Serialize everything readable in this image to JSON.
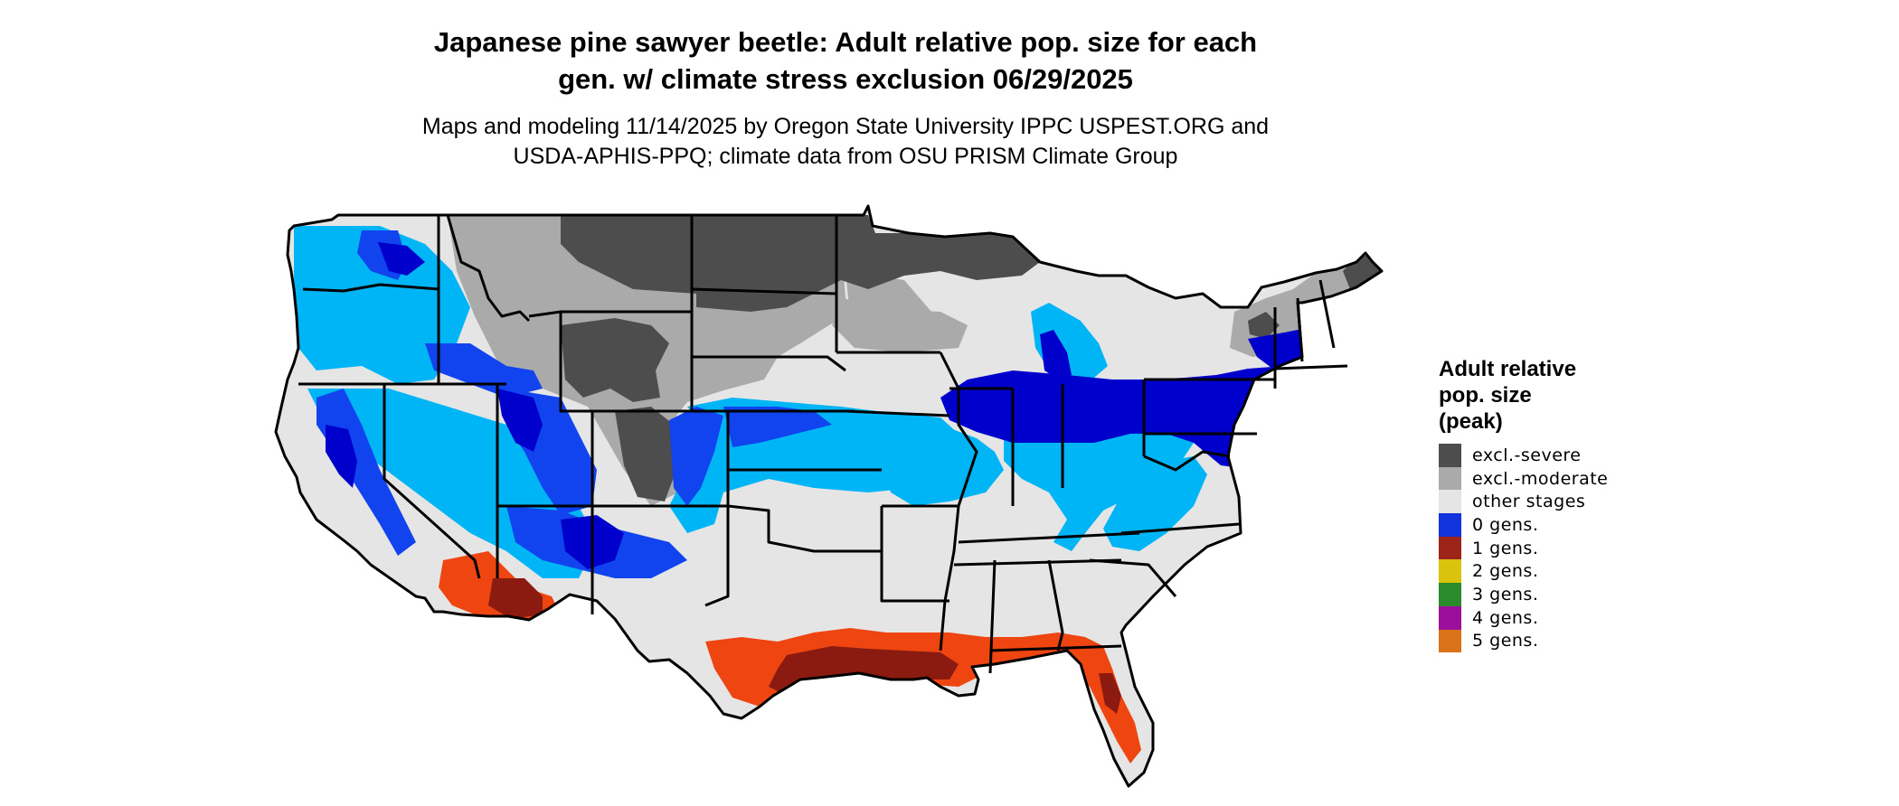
{
  "title": {
    "line1": "Japanese pine sawyer beetle: Adult relative pop. size for each",
    "line2": "gen. w/ climate stress exclusion 06/29/2025"
  },
  "subtitle": {
    "line1": "Maps and modeling 11/14/2025 by Oregon State University IPPC USPEST.ORG and",
    "line2": "USDA-APHIS-PPQ; climate data from OSU PRISM Climate Group"
  },
  "legend": {
    "title_lines": [
      "Adult relative",
      "pop. size",
      "(peak)"
    ],
    "items": [
      {
        "label": "excl.-severe",
        "color": "#4d4d4d"
      },
      {
        "label": "excl.-moderate",
        "color": "#aaaaaa"
      },
      {
        "label": "other stages",
        "color": "#e5e5e5"
      },
      {
        "label": "0 gens.",
        "color": "#1133dd"
      },
      {
        "label": "1 gens.",
        "color": "#9c2418"
      },
      {
        "label": "2 gens.",
        "color": "#d9c30c"
      },
      {
        "label": "3 gens.",
        "color": "#2b8a2b"
      },
      {
        "label": "4 gens.",
        "color": "#9c0f9c"
      },
      {
        "label": "5 gens.",
        "color": "#d9731a"
      }
    ]
  },
  "map_colors": {
    "land": "#e5e5e5",
    "excl_severe": "#4d4d4d",
    "excl_moderate": "#aaaaaa",
    "zero_gens_dark": "#0000cc",
    "zero_gens_mid": "#1144ee",
    "zero_gens_light": "#00b5f5",
    "one_gen_dark": "#8b1a10",
    "one_gen_light": "#ee4511",
    "border": "#000000"
  }
}
